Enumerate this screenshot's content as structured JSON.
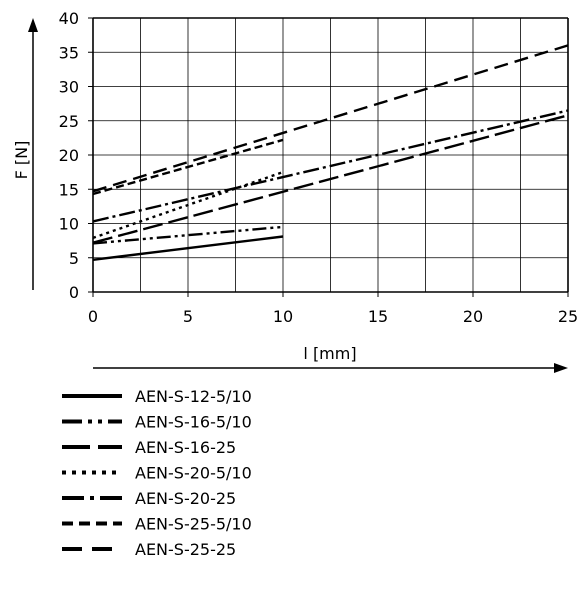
{
  "chart_data": {
    "type": "line",
    "title": "",
    "xlabel": "l [mm]",
    "ylabel": "F [N]",
    "xlim": [
      0,
      25
    ],
    "ylim": [
      0,
      40
    ],
    "x_ticks": [
      "0",
      "5",
      "10",
      "15",
      "20",
      "25"
    ],
    "y_ticks": [
      "0",
      "5",
      "10",
      "15",
      "20",
      "25",
      "30",
      "35",
      "40"
    ],
    "grid": true,
    "legend_position": "bottom",
    "series": [
      {
        "name": "AEN-S-12-5/10",
        "style": "solid",
        "x": [
          0,
          10
        ],
        "y": [
          4.7,
          8.1
        ]
      },
      {
        "name": "AEN-S-16-5/10",
        "style": "dash-dot-dot",
        "x": [
          0,
          10
        ],
        "y": [
          7.1,
          9.5
        ]
      },
      {
        "name": "AEN-S-16-25",
        "style": "long-dash",
        "x": [
          0,
          25
        ],
        "y": [
          7.2,
          25.8
        ]
      },
      {
        "name": "AEN-S-20-5/10",
        "style": "dotted",
        "x": [
          0,
          10
        ],
        "y": [
          7.9,
          17.5
        ]
      },
      {
        "name": "AEN-S-20-25",
        "style": "dash-dot",
        "x": [
          0,
          25
        ],
        "y": [
          10.3,
          26.5
        ]
      },
      {
        "name": "AEN-S-25-5/10",
        "style": "short-dash",
        "x": [
          0,
          10
        ],
        "y": [
          14.3,
          22.2
        ]
      },
      {
        "name": "AEN-S-25-25",
        "style": "medium-dash",
        "x": [
          0,
          25
        ],
        "y": [
          14.7,
          36.0
        ]
      }
    ]
  }
}
